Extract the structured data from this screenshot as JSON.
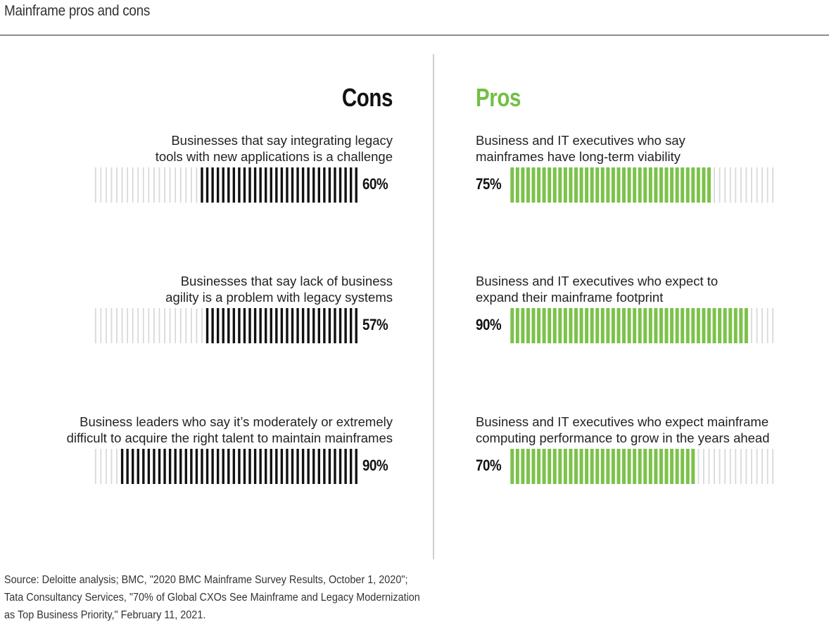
{
  "title": "Mainframe pros and cons",
  "colors": {
    "cons_fill": "#111111",
    "pros_fill": "#7cc24a",
    "empty": "#d9d9d9",
    "pros_heading": "#72bf44"
  },
  "chart_data": {
    "type": "bar",
    "title": "Mainframe pros and cons",
    "bar_style": "segmented-tick",
    "segments_per_bar": 50,
    "xlim": [
      0,
      100
    ],
    "unit": "%",
    "groups": [
      {
        "name": "Cons",
        "direction": "right-to-left",
        "items": [
          {
            "label_lines": [
              "Businesses that say integrating legacy",
              "tools with new applications is a challenge"
            ],
            "value": 60,
            "value_label": "60%"
          },
          {
            "label_lines": [
              "Businesses that say lack of business",
              "agility is a problem with legacy systems"
            ],
            "value": 57,
            "value_label": "57%"
          },
          {
            "label_lines": [
              "Business leaders who say it’s moderately or extremely",
              "difficult to acquire the right talent to maintain mainframes"
            ],
            "value": 90,
            "value_label": "90%"
          }
        ]
      },
      {
        "name": "Pros",
        "direction": "left-to-right",
        "items": [
          {
            "label_lines": [
              "Business and IT executives who say",
              "mainframes have long-term viability"
            ],
            "value": 75,
            "value_label": "75%"
          },
          {
            "label_lines": [
              "Business and IT executives who expect to",
              "expand their mainframe footprint"
            ],
            "value": 90,
            "value_label": "90%"
          },
          {
            "label_lines": [
              "Business and IT executives who expect mainframe",
              "computing performance to grow in the years ahead"
            ],
            "value": 70,
            "value_label": "70%"
          }
        ]
      }
    ]
  },
  "source_lines": [
    "Source: Deloitte analysis; BMC, \"2020 BMC Mainframe Survey Results, October 1, 2020\";",
    "Tata Consultancy Services, \"70% of Global CXOs See Mainframe and Legacy Modernization",
    "as Top Business Priority,\" February 11, 2021."
  ]
}
